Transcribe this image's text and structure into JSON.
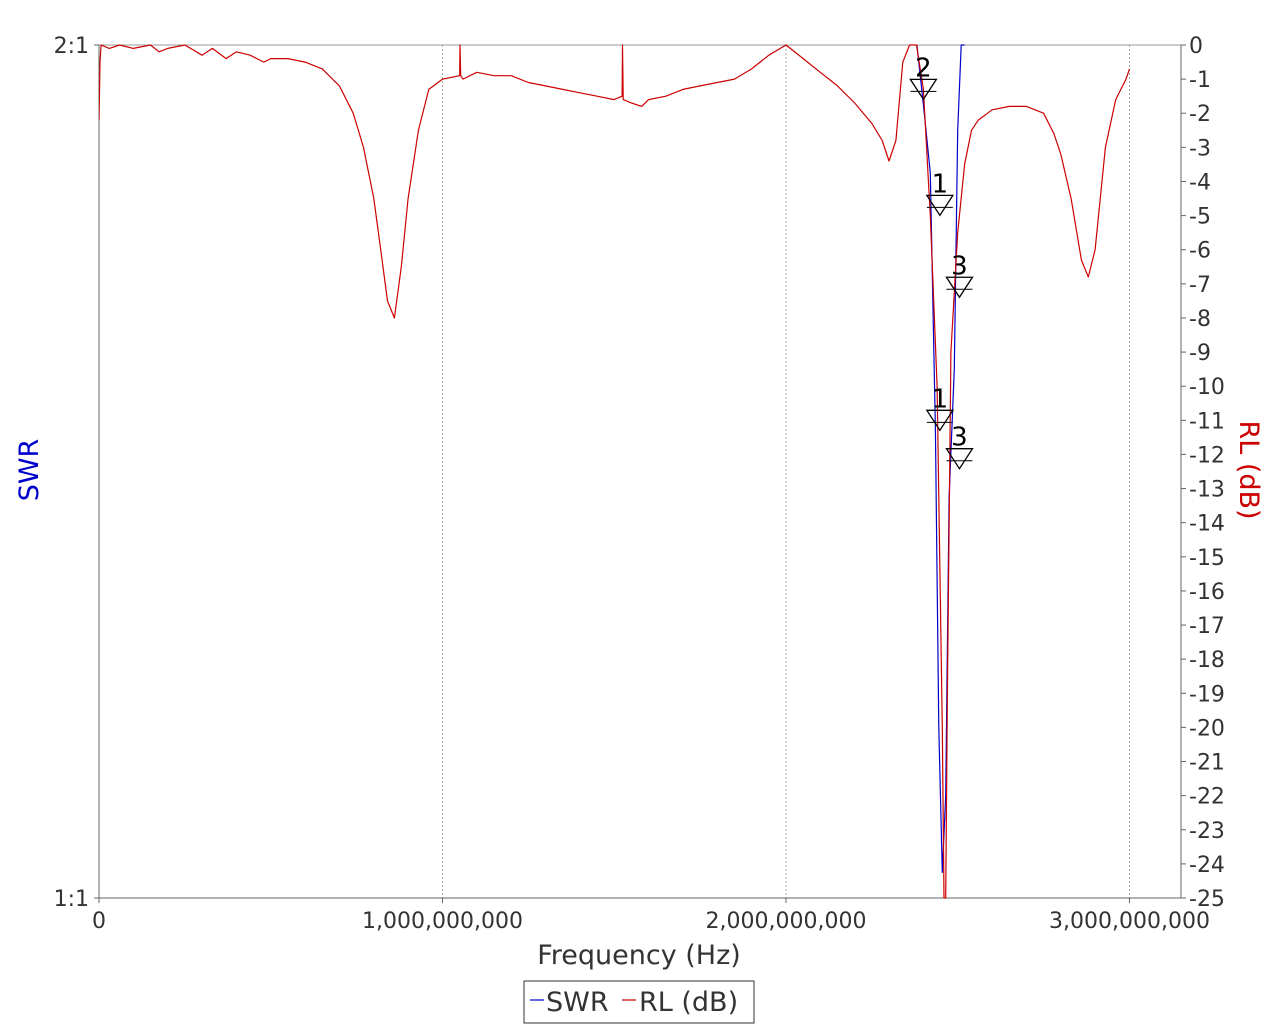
{
  "chart_data": {
    "type": "line",
    "xlabel": "Frequency (Hz)",
    "ylabel_left": "SWR",
    "ylabel_right": "RL (dB)",
    "xlim": [
      0,
      3150000000
    ],
    "x_ticks": [
      {
        "value": 0,
        "label": "0"
      },
      {
        "value": 1000000000,
        "label": "1,000,000,000"
      },
      {
        "value": 2000000000,
        "label": "2,000,000,000"
      },
      {
        "value": 3000000000,
        "label": "3,000,000,000"
      }
    ],
    "left_axis": {
      "ylim": [
        1,
        2
      ],
      "ticks": [
        {
          "value": 2,
          "label": "2:1"
        },
        {
          "value": 1,
          "label": "1:1"
        }
      ]
    },
    "right_axis": {
      "ylim": [
        -25,
        0
      ],
      "ticks": [
        0,
        -1,
        -2,
        -3,
        -4,
        -5,
        -6,
        -7,
        -8,
        -9,
        -10,
        -11,
        -12,
        -13,
        -14,
        -15,
        -16,
        -17,
        -18,
        -19,
        -20,
        -21,
        -22,
        -23,
        -24,
        -25
      ]
    },
    "grid": "vertical dotted at x ticks",
    "legend": {
      "placement": "bottom-center",
      "entries": [
        "SWR",
        "RL (dB)"
      ]
    },
    "series": [
      {
        "name": "SWR",
        "color": "#0000cc",
        "axis": "left",
        "x": [
          2381000000,
          2400000000,
          2420000000,
          2435000000,
          2445000000,
          2455000000,
          2465000000,
          2475000000,
          2490000000,
          2500000000,
          2510000000,
          2520000000
        ],
        "y": [
          2.0,
          1.93,
          1.85,
          1.55,
          1.2,
          1.03,
          1.12,
          1.47,
          1.62,
          1.9,
          2.0,
          2.0
        ]
      },
      {
        "name": "RL (dB)",
        "color": "#cc0000",
        "axis": "right",
        "x": [
          0,
          3000000,
          6000000,
          30000000,
          60000000,
          100000000,
          150000000,
          175000000,
          200000000,
          250000000,
          300000000,
          330000000,
          370000000,
          400000000,
          440000000,
          480000000,
          500000000,
          550000000,
          600000000,
          650000000,
          700000000,
          740000000,
          770000000,
          800000000,
          820000000,
          840000000,
          860000000,
          880000000,
          900000000,
          930000000,
          960000000,
          1000000000,
          1050000000,
          1051000000,
          1053000000,
          1060000000,
          1100000000,
          1150000000,
          1200000000,
          1250000000,
          1300000000,
          1350000000,
          1400000000,
          1450000000,
          1500000000,
          1523000000,
          1524000000,
          1526000000,
          1550000000,
          1580000000,
          1600000000,
          1650000000,
          1700000000,
          1750000000,
          1800000000,
          1850000000,
          1900000000,
          1950000000,
          2000000000,
          2050000000,
          2100000000,
          2150000000,
          2200000000,
          2250000000,
          2280000000,
          2300000000,
          2320000000,
          2340000000,
          2360000000,
          2380000000,
          2400000000,
          2420000000,
          2440000000,
          2455000000,
          2460000000,
          2465000000,
          2470000000,
          2480000000,
          2500000000,
          2520000000,
          2540000000,
          2560000000,
          2600000000,
          2650000000,
          2700000000,
          2750000000,
          2780000000,
          2800000000,
          2830000000,
          2860000000,
          2880000000,
          2900000000,
          2930000000,
          2960000000,
          2990000000,
          3000000000
        ],
        "y": [
          -2.2,
          -0.5,
          0,
          -0.1,
          0,
          -0.1,
          0,
          -0.2,
          -0.1,
          0,
          -0.3,
          -0.1,
          -0.4,
          -0.2,
          -0.3,
          -0.5,
          -0.4,
          -0.4,
          -0.5,
          -0.7,
          -1.2,
          -2,
          -3,
          -4.5,
          -6,
          -7.5,
          -8,
          -6.5,
          -4.5,
          -2.5,
          -1.3,
          -1.0,
          -0.9,
          0,
          -0.9,
          -1.0,
          -0.8,
          -0.9,
          -0.9,
          -1.1,
          -1.2,
          -1.3,
          -1.4,
          -1.5,
          -1.6,
          -1.5,
          0,
          -1.6,
          -1.7,
          -1.8,
          -1.6,
          -1.5,
          -1.3,
          -1.2,
          -1.1,
          -1.0,
          -0.7,
          -0.3,
          0,
          -0.4,
          -0.8,
          -1.2,
          -1.7,
          -2.3,
          -2.8,
          -3.4,
          -2.8,
          -0.5,
          0,
          0,
          -1.3,
          -5,
          -10,
          -20,
          -25,
          -25,
          -19,
          -9,
          -5.5,
          -3.5,
          -2.5,
          -2.2,
          -1.9,
          -1.8,
          -1.8,
          -2.0,
          -2.6,
          -3.2,
          -4.5,
          -6.3,
          -6.8,
          -6.0,
          -3.0,
          -1.6,
          -1.0,
          -0.7
        ]
      }
    ],
    "markers": [
      {
        "label": "2",
        "series": "RL (dB)",
        "x": 2400000000,
        "y": -1.3
      },
      {
        "label": "1",
        "series": "RL (dB)",
        "x": 2448000000,
        "y": -4.7
      },
      {
        "label": "3",
        "series": "RL (dB)",
        "x": 2505000000,
        "y": -7.1
      },
      {
        "label": "1",
        "series": "SWR",
        "x": 2448000000,
        "y": 1.56
      },
      {
        "label": "3",
        "series": "SWR",
        "x": 2505000000,
        "y": 1.515
      }
    ]
  }
}
